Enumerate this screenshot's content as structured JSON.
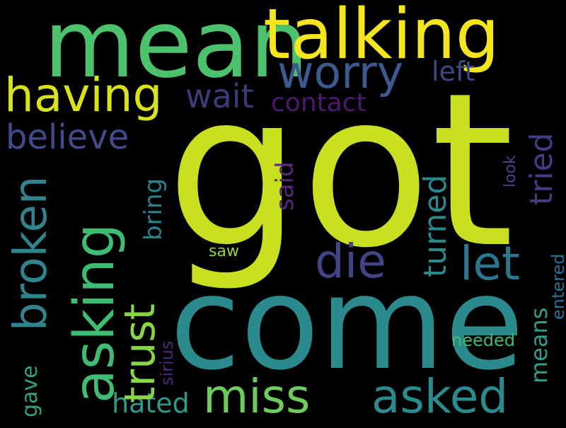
{
  "background": "#000000",
  "words": [
    {
      "id": "got",
      "text": "got",
      "color": "#c8e020"
    },
    {
      "id": "come",
      "text": "come",
      "color": "#2a8a8c"
    },
    {
      "id": "mean",
      "text": "mean",
      "color": "#4cc26c"
    },
    {
      "id": "talking",
      "text": "talking",
      "color": "#f4e51e"
    },
    {
      "id": "asking",
      "text": "asking",
      "color": "#3fbc73"
    },
    {
      "id": "worry",
      "text": "worry",
      "color": "#3b5a8e"
    },
    {
      "id": "having",
      "text": "having",
      "color": "#d7e219"
    },
    {
      "id": "broken",
      "text": "broken",
      "color": "#31838e"
    },
    {
      "id": "trust",
      "text": "trust",
      "color": "#89d548"
    },
    {
      "id": "miss",
      "text": "miss",
      "color": "#6ccd5a"
    },
    {
      "id": "asked",
      "text": "asked",
      "color": "#2a8a8c"
    },
    {
      "id": "die",
      "text": "die",
      "color": "#414487"
    },
    {
      "id": "let",
      "text": "let",
      "color": "#2b778e"
    },
    {
      "id": "wait",
      "text": "wait",
      "color": "#3d3a7a"
    },
    {
      "id": "believe",
      "text": "believe",
      "color": "#424a8a"
    },
    {
      "id": "contact",
      "text": "contact",
      "color": "#4b1a6e"
    },
    {
      "id": "left",
      "text": "left",
      "color": "#3a4888"
    },
    {
      "id": "tried",
      "text": "tried",
      "color": "#433d84"
    },
    {
      "id": "turned",
      "text": "turned",
      "color": "#2a8a8c"
    },
    {
      "id": "said",
      "text": "said",
      "color": "#5a2a7a"
    },
    {
      "id": "bring",
      "text": "bring",
      "color": "#26838f"
    },
    {
      "id": "hated",
      "text": "hated",
      "color": "#2e9a8c"
    },
    {
      "id": "gave",
      "text": "gave",
      "color": "#35a07e"
    },
    {
      "id": "means",
      "text": "means",
      "color": "#2f9e8a"
    },
    {
      "id": "entered",
      "text": "entered",
      "color": "#2d718e"
    },
    {
      "id": "needed",
      "text": "needed",
      "color": "#3fbc73"
    },
    {
      "id": "sirius",
      "text": "sirius",
      "color": "#4a2a78"
    },
    {
      "id": "saw",
      "text": "saw",
      "color": "#8ed645"
    },
    {
      "id": "look",
      "text": "look",
      "color": "#414487"
    }
  ]
}
